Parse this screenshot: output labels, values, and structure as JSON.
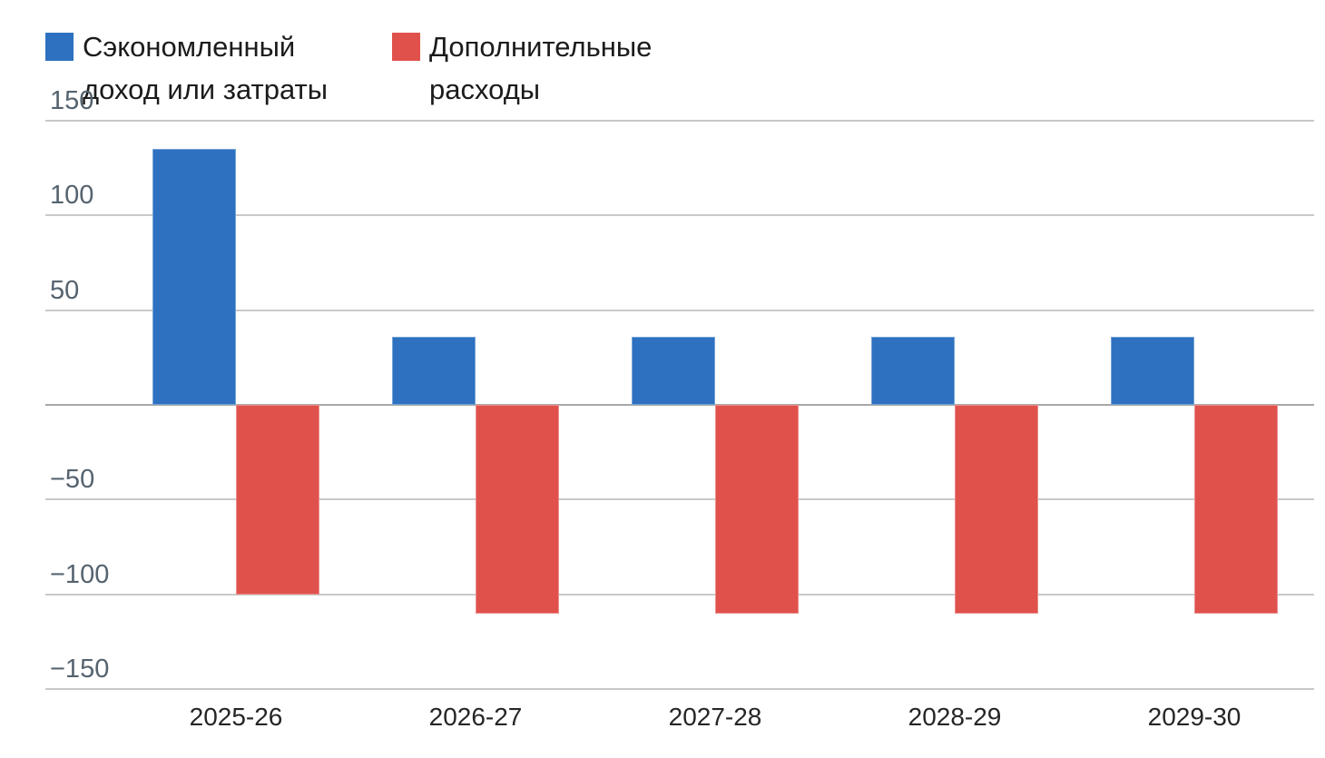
{
  "chart_data": {
    "type": "bar",
    "title": "",
    "categories": [
      "2025-26",
      "2026-27",
      "2027-28",
      "2028-29",
      "2029-30"
    ],
    "series": [
      {
        "name": "Сэкономленный доход или затраты",
        "label_lines": [
          "Сэкономленный",
          "доход или затраты"
        ],
        "color": "#2d71c0",
        "values": [
          135,
          36,
          36,
          36,
          36
        ]
      },
      {
        "name": "Дополнительные расходы",
        "label_lines": [
          "Дополнительные",
          "расходы"
        ],
        "color": "#e0514c",
        "values": [
          -100,
          -110,
          -110,
          -110,
          -110
        ]
      }
    ],
    "ylim": [
      -150,
      150
    ],
    "ytick_step": 50,
    "ytick_labels": [
      150,
      100,
      50,
      -50,
      -100,
      -150
    ],
    "grid": true,
    "legend_position": "top-left",
    "gridline_color": "#c9c9c9",
    "zero_line_color": "#a8a8a8",
    "axis_label_color": "#55636f",
    "category_label_color": "#262626"
  }
}
